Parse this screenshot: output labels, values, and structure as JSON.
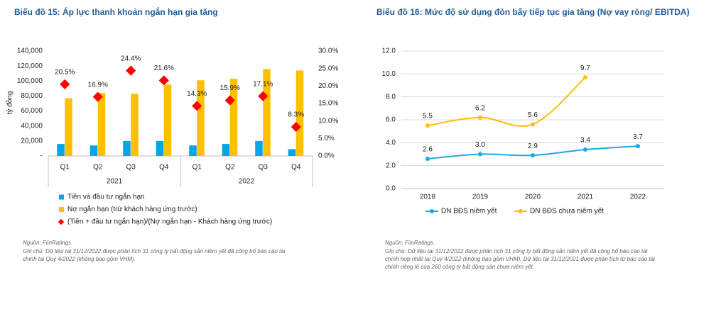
{
  "chart_data": [
    {
      "type": "bar",
      "title": "Biểu đồ 15: Áp lực thanh khoản ngắn hạn gia tăng",
      "y_label": "tỷ đồng",
      "categories": [
        "Q1",
        "Q2",
        "Q3",
        "Q4",
        "Q1",
        "Q2",
        "Q3",
        "Q4"
      ],
      "x_groups": [
        "2021",
        "2022"
      ],
      "series": [
        {
          "name": "Tiền và đầu tư ngắn hạn",
          "type": "bar",
          "color": "#00a6e8",
          "values": [
            16000,
            14000,
            20000,
            20000,
            14000,
            16000,
            20000,
            9000
          ]
        },
        {
          "name": "Nợ ngắn hạn (trừ khách hàng ứng trước)",
          "type": "bar",
          "color": "#ffc000",
          "values": [
            77000,
            84000,
            83000,
            95000,
            101000,
            103000,
            116000,
            114000
          ]
        },
        {
          "name": "(Tiền + đầu tư ngắn hạn)/(Nợ ngắn hạn - Khách hàng ứng trước)",
          "type": "scatter",
          "axis": "y2",
          "color": "#ff0000",
          "values": [
            20.5,
            16.9,
            24.4,
            21.6,
            14.3,
            15.9,
            17.1,
            8.3
          ],
          "value_labels": [
            "20.5%",
            "16.9%",
            "24.4%",
            "21.6%",
            "14.3%",
            "15.9%",
            "17.1%",
            "8.3%"
          ]
        }
      ],
      "ylim": [
        0,
        140000
      ],
      "yticks": [
        {
          "value": 0,
          "label": "-"
        },
        {
          "value": 20000,
          "label": "20,000"
        },
        {
          "value": 40000,
          "label": "40,000"
        },
        {
          "value": 60000,
          "label": "60,000"
        },
        {
          "value": 80000,
          "label": "80,000"
        },
        {
          "value": 100000,
          "label": "100,000"
        },
        {
          "value": 120000,
          "label": "120,000"
        },
        {
          "value": 140000,
          "label": "140,000"
        }
      ],
      "y2lim": [
        0,
        30
      ],
      "y2ticks": [
        {
          "value": 0,
          "label": "0.0%"
        },
        {
          "value": 5,
          "label": "5.0%"
        },
        {
          "value": 10,
          "label": "10.0%"
        },
        {
          "value": 15,
          "label": "15.0%"
        },
        {
          "value": 20,
          "label": "20.0%"
        },
        {
          "value": 25,
          "label": "25.0%"
        },
        {
          "value": 30,
          "label": "30.0%"
        }
      ],
      "grid": false,
      "source": "Nguồn: FiinRatings.",
      "notes": [
        "Ghi chú: Dữ liệu tại 31/12/2022 được phân tích 31 công ty bất động sản niêm yết đã công bố báo cáo tài",
        "chính tại Quý 4/2022 (không bao gồm VHM)."
      ]
    },
    {
      "type": "line",
      "title": "Biểu đồ 16: Mức độ sử dụng đòn bẩy tiếp tục gia tăng  (Nợ vay ròng/ EBITDA)",
      "categories": [
        "2018",
        "2019",
        "2020",
        "2021",
        "2022"
      ],
      "series": [
        {
          "name": "DN BĐS niêm yết",
          "color": "#1ea7e8",
          "values": [
            2.6,
            3.0,
            2.9,
            3.4,
            3.7
          ],
          "value_labels": [
            "2.6",
            "3.0",
            "2.9",
            "3.4",
            "3.7"
          ]
        },
        {
          "name": "DN BĐS chưa niêm yết",
          "color": "#ffc000",
          "values": [
            5.5,
            6.2,
            5.6,
            9.7,
            null
          ],
          "value_labels": [
            "5.5",
            "6.2",
            "5.6",
            "9.7",
            null
          ]
        }
      ],
      "ylim": [
        0,
        12
      ],
      "yticks": [
        {
          "value": 0,
          "label": "0.0"
        },
        {
          "value": 2,
          "label": "2.0"
        },
        {
          "value": 4,
          "label": "4.0"
        },
        {
          "value": 6,
          "label": "6.0"
        },
        {
          "value": 8,
          "label": "8.0"
        },
        {
          "value": 10,
          "label": "10.0"
        },
        {
          "value": 12,
          "label": "12.0"
        }
      ],
      "grid": true,
      "source": "Nguồn: FiinRatings.",
      "notes": [
        "Ghi chú: Dữ liệu tại 31/12/2022 được phân tích 31 công ty bất động sản niêm yết đã công bố báo cáo tài",
        "chính hợp nhất tại Quý 4/2022 (không bao gồm VHM). Dữ liệu tại 31/12/2021 được phân tích từ báo cáo tài",
        "chính riêng lẻ của 260 công ty bất động sản chưa niêm yết."
      ]
    }
  ]
}
